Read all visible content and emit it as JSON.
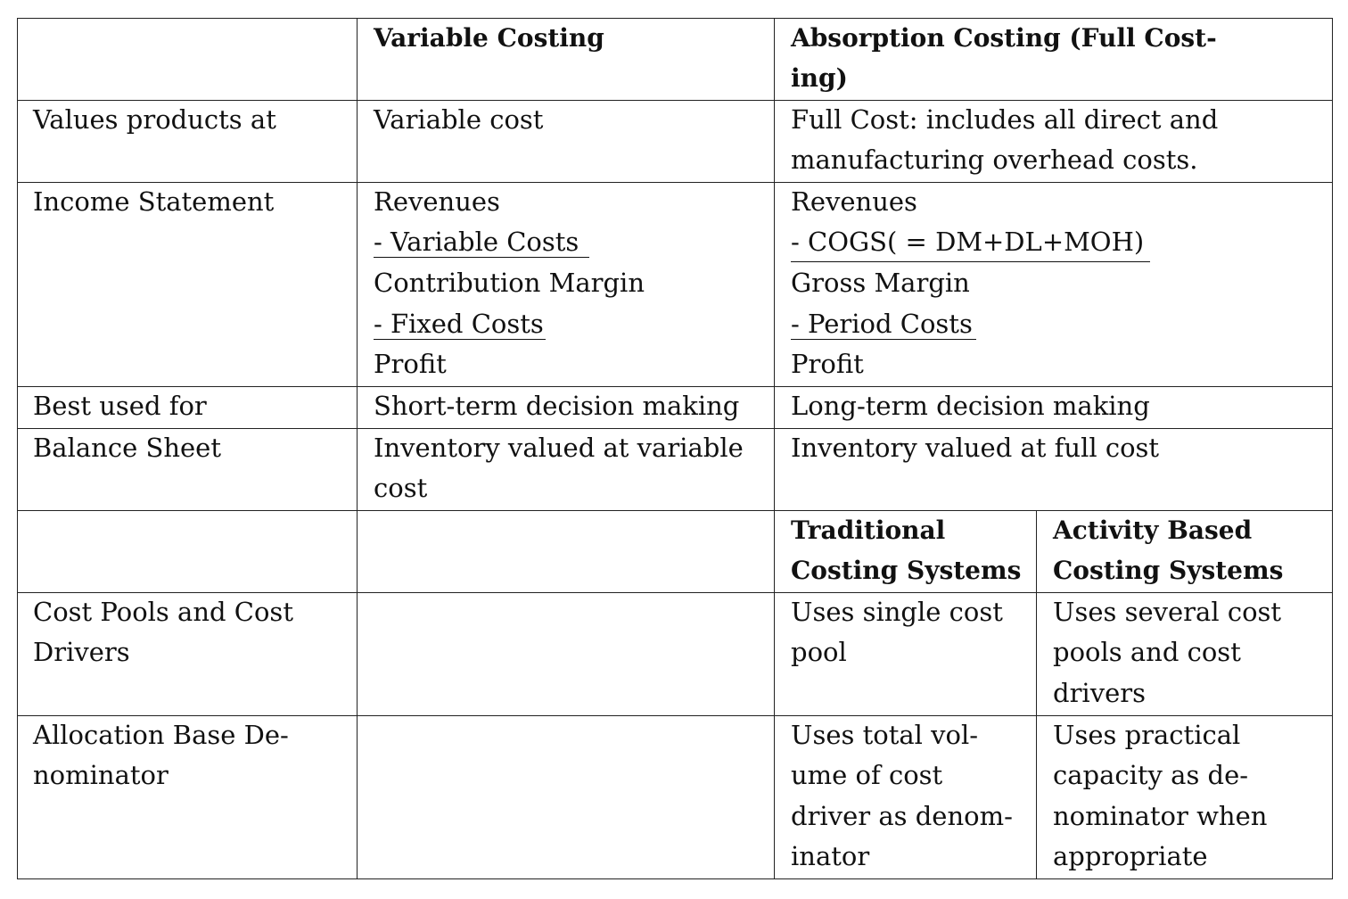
{
  "header": {
    "variable": "Variable Costing",
    "absorption_line1": "Absorption Costing (Full Cost-",
    "absorption_line2": "ing)"
  },
  "rows": {
    "values": {
      "label": "Values products at",
      "variable": "Variable cost",
      "absorption_line1": "Full Cost: includes all direct and",
      "absorption_line2": "manufacturing overhead costs."
    },
    "income": {
      "label": "Income Statement",
      "variable": [
        "Revenues",
        "- Variable Costs",
        "Contribution Margin",
        "- Fixed Costs",
        "Profit"
      ],
      "absorption": [
        "Revenues",
        "- COGS( = DM+DL+MOH)",
        "Gross Margin",
        "- Period Costs",
        "Profit"
      ]
    },
    "best": {
      "label": "Best used for",
      "variable": "Short-term decision making",
      "absorption": "Long-term decision making"
    },
    "balance": {
      "label": "Balance Sheet",
      "variable_line1": "Inventory valued at variable",
      "variable_line2": "cost",
      "absorption": "Inventory valued at full cost"
    }
  },
  "subheader": {
    "traditional_line1": "Traditional",
    "traditional_line2": "Costing Systems",
    "abc_line1": "Activity Based",
    "abc_line2": "Costing Systems"
  },
  "rows2": {
    "pools": {
      "label_line1": "Cost Pools and Cost",
      "label_line2": "Drivers",
      "traditional": [
        "Uses single cost",
        "pool"
      ],
      "abc": [
        "Uses several cost",
        "pools and cost",
        "drivers"
      ]
    },
    "allocation": {
      "label_line1": "Allocation Base De-",
      "label_line2": "nominator",
      "traditional": [
        "Uses total vol-",
        "ume of cost",
        "driver as denom-",
        "inator"
      ],
      "abc": [
        "Uses practical",
        "capacity as de-",
        "nominator when",
        "appropriate"
      ]
    }
  }
}
